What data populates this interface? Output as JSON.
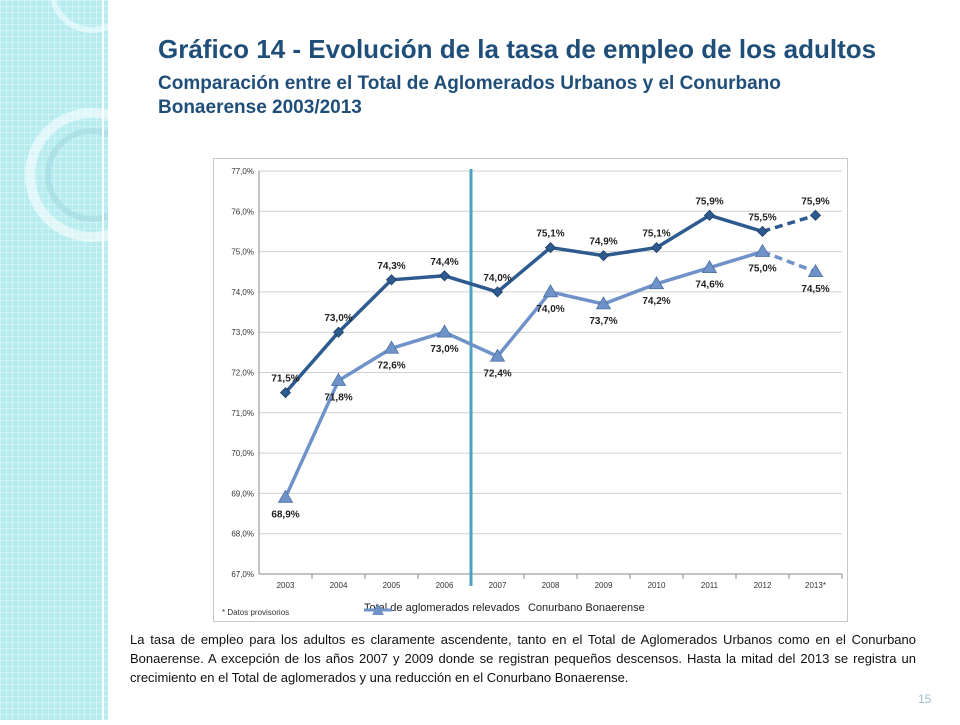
{
  "slide": {
    "title": "Gráfico 14 - Evolución de la tasa de empleo de los adultos",
    "subtitle": "Comparación entre el Total de Aglomerados Urbanos y el Conurbano Bonaerense 2003/2013",
    "body": "La tasa de empleo para los adultos es claramente ascendente, tanto en el Total de Aglomerados Urbanos como en el Conurbano Bonaerense. A excepción de los años 2007 y 2009 donde se registran pequeños descensos. Hasta la mitad del 2013 se registra un crecimiento en el Total de aglomerados y una reducción en el Conurbano Bonaerense.",
    "page_number": "15",
    "chart_footnote": "* Datos provisorios"
  },
  "colors": {
    "title": "#1f4e79",
    "series1": "#2e5b8f",
    "series2": "#6f93c9",
    "divider": "#4ba3c3",
    "side_band": "#b6ecf0"
  },
  "chart_data": {
    "type": "line",
    "title": "",
    "xlabel": "",
    "ylabel": "",
    "categories": [
      "2003",
      "2004",
      "2005",
      "2006",
      "2007",
      "2008",
      "2009",
      "2010",
      "2011",
      "2012",
      "2013*"
    ],
    "ylim": [
      67.0,
      77.0
    ],
    "yticks": [
      "67,0%",
      "68,0%",
      "69,0%",
      "70,0%",
      "71,0%",
      "72,0%",
      "73,0%",
      "74,0%",
      "75,0%",
      "76,0%",
      "77,0%"
    ],
    "grid": true,
    "legend_position": "bottom",
    "vertical_marker_between": [
      "2006",
      "2007"
    ],
    "dashed_last_segment": true,
    "series": [
      {
        "name": "Total de aglomerados relevados",
        "values": [
          71.5,
          73.0,
          74.3,
          74.4,
          74.0,
          75.1,
          74.9,
          75.1,
          75.9,
          75.5,
          75.9
        ],
        "labels": [
          "71,5%",
          "73,0%",
          "74,3%",
          "74,4%",
          "74,0%",
          "75,1%",
          "74,9%",
          "75,1%",
          "75,9%",
          "75,5%",
          "75,9%"
        ],
        "marker": "diamond"
      },
      {
        "name": "Conurbano Bonaerense",
        "values": [
          68.9,
          71.8,
          72.6,
          73.0,
          72.4,
          74.0,
          73.7,
          74.2,
          74.6,
          75.0,
          74.5
        ],
        "labels": [
          "68,9%",
          "71,8%",
          "72,6%",
          "73,0%",
          "72,4%",
          "74,0%",
          "73,7%",
          "74,2%",
          "74,6%",
          "75,0%",
          "74,5%"
        ],
        "marker": "triangle"
      }
    ]
  }
}
